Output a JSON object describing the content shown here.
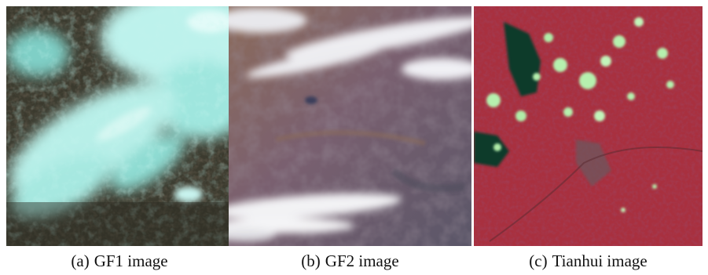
{
  "panels": [
    {
      "id": "a",
      "tag": "(a)",
      "caption": "GF1 image",
      "colors": {
        "dominant": "#3a3a2c",
        "cloud": "#cdf4ee",
        "haze": "#7fd0c8"
      }
    },
    {
      "id": "b",
      "tag": "(b)",
      "caption": "GF2 image",
      "colors": {
        "dominant": "#6e5a6c",
        "cloud": "#f2f2f4",
        "ground": "#8a6f62"
      }
    },
    {
      "id": "c",
      "tag": "(c)",
      "caption": "Tianhui image",
      "colors": {
        "dominant": "#9a2a3a",
        "cloud": "#b8f0b0",
        "water": "#0e3a2c"
      }
    }
  ]
}
